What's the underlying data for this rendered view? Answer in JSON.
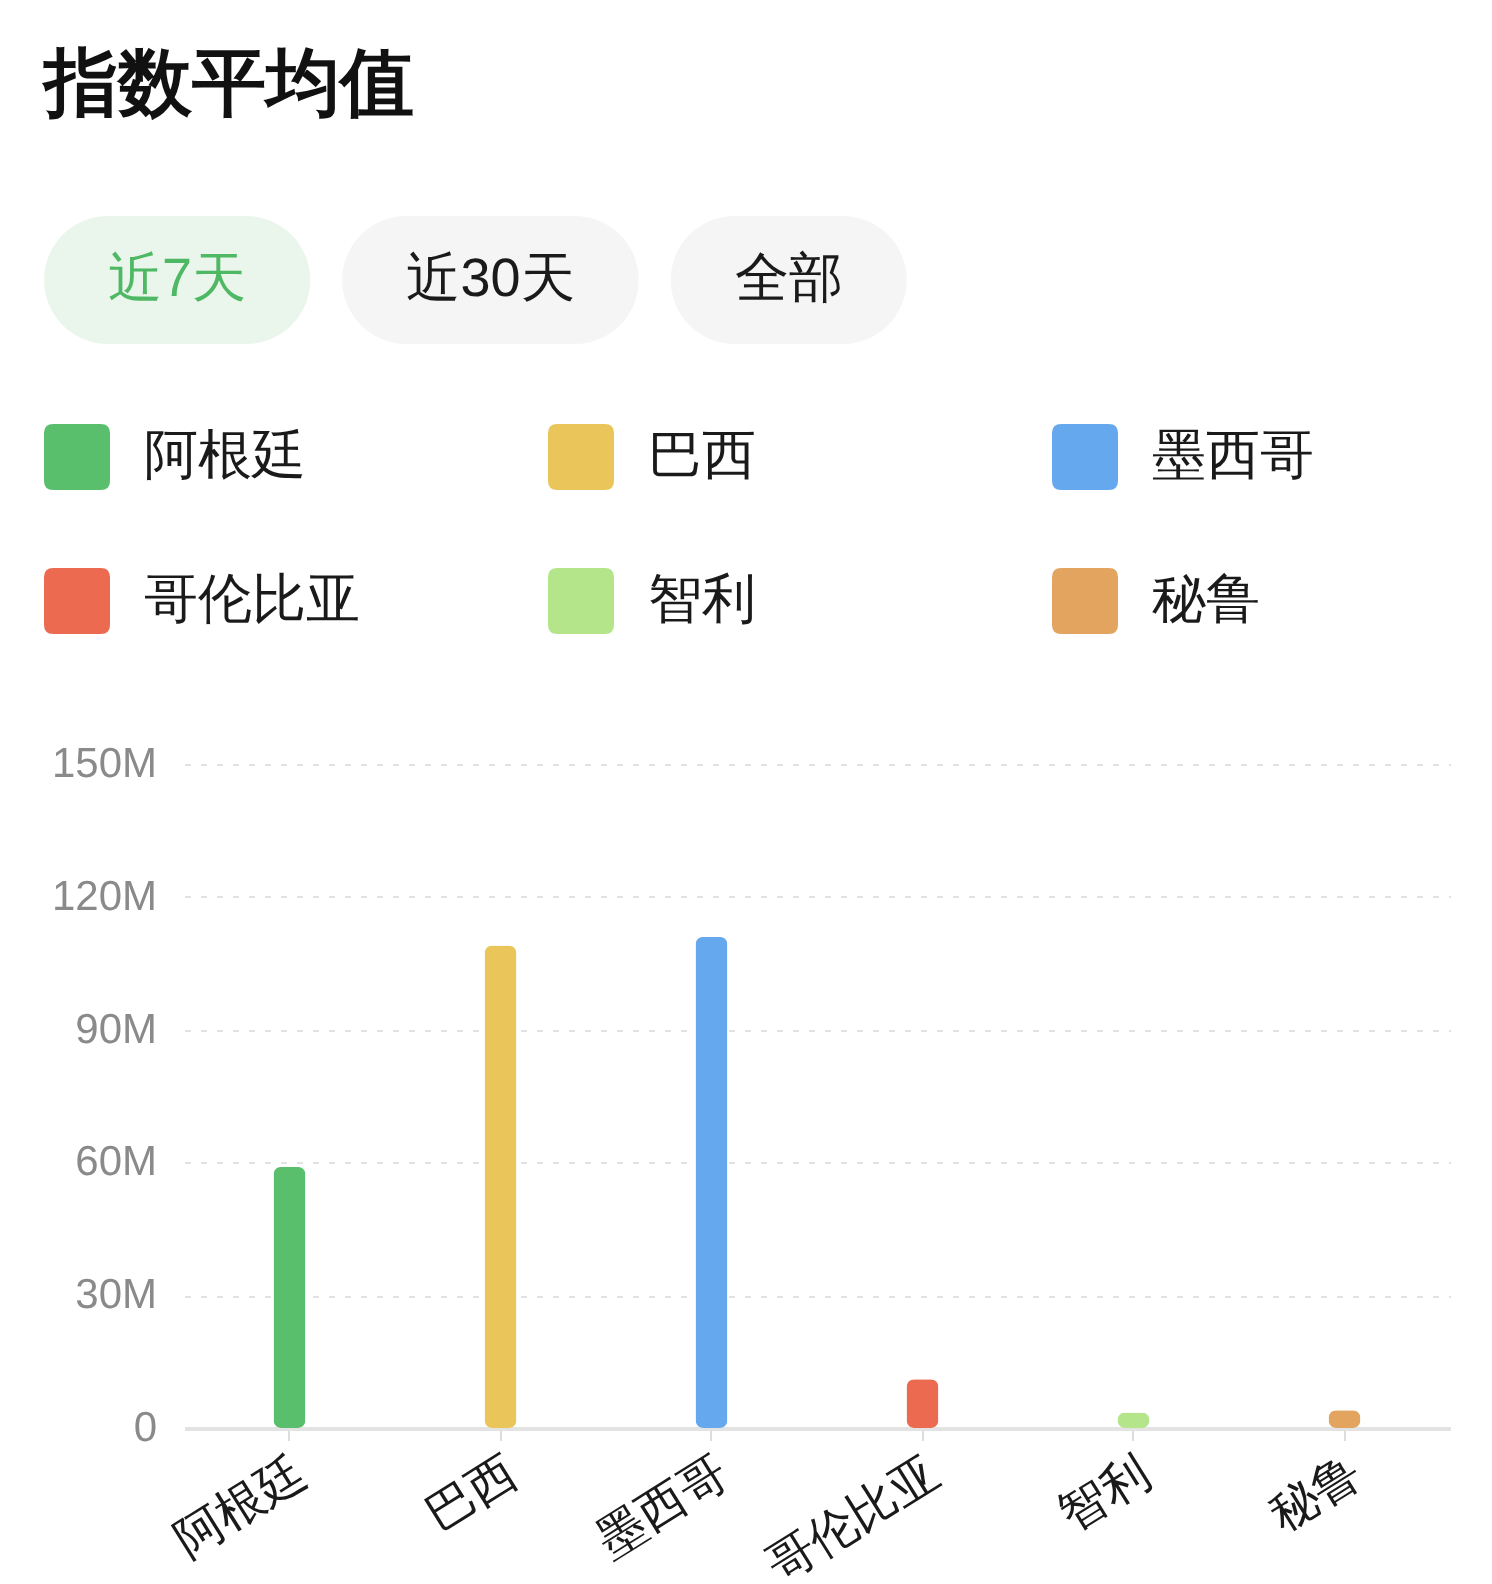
{
  "chart_data": {
    "type": "bar",
    "title": "指数平均值",
    "annotations": [
      "近7天",
      "近30天",
      "全部"
    ],
    "categories": [
      "阿根廷",
      "巴西",
      "墨西哥",
      "哥伦比亚",
      "智利",
      "秘鲁"
    ],
    "stacked": true,
    "series": [
      {
        "name": "阿根廷",
        "color": "#5abf6d",
        "values": [
          59,
          null,
          null,
          null,
          null,
          null
        ]
      },
      {
        "name": "巴西",
        "color": "#e9c55a",
        "values": [
          null,
          109,
          null,
          null,
          null,
          null
        ]
      },
      {
        "name": "墨西哥",
        "color": "#65a8ee",
        "values": [
          null,
          null,
          111,
          null,
          null,
          null
        ]
      },
      {
        "name": "哥伦比亚",
        "color": "#ec6a50",
        "values": [
          null,
          null,
          null,
          11,
          null,
          null
        ]
      },
      {
        "name": "智利",
        "color": "#b4e58a",
        "values": [
          null,
          null,
          null,
          null,
          3.5,
          null
        ]
      },
      {
        "name": "秘鲁",
        "color": "#e2a45f",
        "values": [
          null,
          null,
          null,
          null,
          null,
          4
        ]
      }
    ],
    "ylim": [
      0,
      150
    ],
    "yticks": [
      0,
      {
        "value": 30,
        "label": "30M"
      },
      {
        "value": 60,
        "label": "60M"
      },
      {
        "value": 90,
        "label": "90M"
      },
      {
        "value": 120,
        "label": "120M"
      },
      {
        "value": 150,
        "label": "150M"
      }
    ],
    "grid": "y",
    "legend": "top"
  }
}
